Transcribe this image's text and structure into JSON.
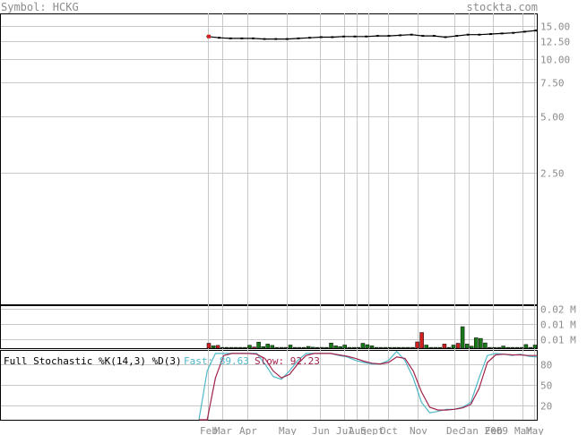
{
  "header": {
    "symbol_label": "Symbol: HCKG",
    "site": "stockta.com"
  },
  "colors": {
    "grid": "#c8c8c8",
    "up_volume": "#1a7a1a",
    "down_volume": "#d02020",
    "price": "#000000",
    "fast": "#4fb8c8",
    "slow": "#a0224a",
    "text_muted": "#8c8c8c"
  },
  "chart_data": [
    {
      "type": "line",
      "panel": "price",
      "scale": "log",
      "y_ticks": [
        "15.00",
        "12.50",
        "10.00",
        "7.50",
        "5.00",
        "2.50"
      ],
      "series": [
        {
          "values": [
            13.2,
            13.0,
            12.9,
            12.9,
            12.9,
            12.8,
            12.8,
            12.8,
            12.9,
            13.0,
            13.1,
            13.1,
            13.2,
            13.2,
            13.2,
            13.3,
            13.3,
            13.4,
            13.5,
            13.3,
            13.3,
            13.1,
            13.3,
            13.5,
            13.5,
            13.6,
            13.7,
            13.8,
            14.0,
            14.2
          ]
        }
      ]
    },
    {
      "type": "bar",
      "panel": "volume",
      "y_ticks": [
        "0.02 M",
        "0.01 M",
        "0.01 M"
      ],
      "ylim": [
        0,
        0.022
      ],
      "values": [
        0.0025,
        0.0012,
        0.0014,
        0.0004,
        0.0004,
        0.0004,
        0.0004,
        0.0004,
        0.0004,
        0.0015,
        0.0006,
        0.0031,
        0.0008,
        0.0021,
        0.0014,
        0.0004,
        0.0004,
        0.0004,
        0.0016,
        0.0004,
        0.0004,
        0.0004,
        0.0009,
        0.0005,
        0.0004,
        0.0004,
        0.0004,
        0.0026,
        0.0012,
        0.0008,
        0.0016,
        0.0004,
        0.0004,
        0.0004,
        0.0025,
        0.0018,
        0.0012,
        0.0004,
        0.0004,
        0.0004,
        0.0004,
        0.0004,
        0.0004,
        0.0004,
        0.0004,
        0.0004,
        0.0032,
        0.008,
        0.0016,
        0.0004,
        0.0004,
        0.0004,
        0.0021,
        0.0004,
        0.0016,
        0.0025,
        0.011,
        0.0021,
        0.001,
        0.0053,
        0.005,
        0.0027,
        0.0004,
        0.0004,
        0.0004,
        0.0011,
        0.0004,
        0.0004,
        0.0004,
        0.0004,
        0.0019,
        0.0004,
        0.0016
      ],
      "down_flags": [
        1,
        0,
        1,
        0,
        0,
        0,
        0,
        0,
        0,
        0,
        1,
        0,
        0,
        0,
        0,
        0,
        0,
        0,
        0,
        0,
        0,
        0,
        0,
        0,
        0,
        0,
        0,
        0,
        0,
        0,
        0,
        0,
        0,
        0,
        0,
        0,
        0,
        0,
        0,
        0,
        0,
        0,
        0,
        0,
        0,
        0,
        1,
        1,
        0,
        0,
        0,
        0,
        1,
        0,
        0,
        1,
        0,
        0,
        0,
        0,
        0,
        0,
        0,
        0,
        0,
        0,
        0,
        0,
        0,
        0,
        0,
        0,
        0
      ]
    },
    {
      "type": "line",
      "panel": "stochastic",
      "title": "Full Stochastic %K(14,3) %D(3)",
      "fast_label": "Fast: 89.63",
      "slow_label": "Slow: 92.23",
      "ylim": [
        0,
        100
      ],
      "y_ticks": [
        80,
        50,
        20
      ],
      "series": [
        {
          "name": "Fast",
          "values": [
            0,
            70,
            95,
            95,
            95,
            95,
            95,
            95,
            80,
            62,
            58,
            70,
            85,
            95,
            95,
            95,
            95,
            92,
            90,
            85,
            82,
            80,
            80,
            85,
            98,
            85,
            60,
            25,
            10,
            12,
            15,
            15,
            18,
            25,
            60,
            92,
            95,
            94,
            92,
            94,
            91,
            90
          ]
        },
        {
          "name": "Slow",
          "values": [
            0,
            0,
            60,
            92,
            95,
            95,
            95,
            94,
            88,
            70,
            60,
            65,
            80,
            92,
            95,
            95,
            95,
            93,
            91,
            88,
            84,
            81,
            80,
            82,
            90,
            88,
            70,
            40,
            18,
            14,
            14,
            15,
            17,
            22,
            45,
            82,
            93,
            94,
            93,
            93,
            92,
            92
          ]
        }
      ]
    }
  ],
  "x_axis": {
    "ticks": [
      "Feb",
      "Mar",
      "Apr",
      "May",
      "Jun",
      "Jul",
      "Aug",
      "Sept",
      "Oct",
      "Nov",
      "Dec",
      "Jan 2009",
      "Feb",
      "Mar",
      "May"
    ]
  }
}
